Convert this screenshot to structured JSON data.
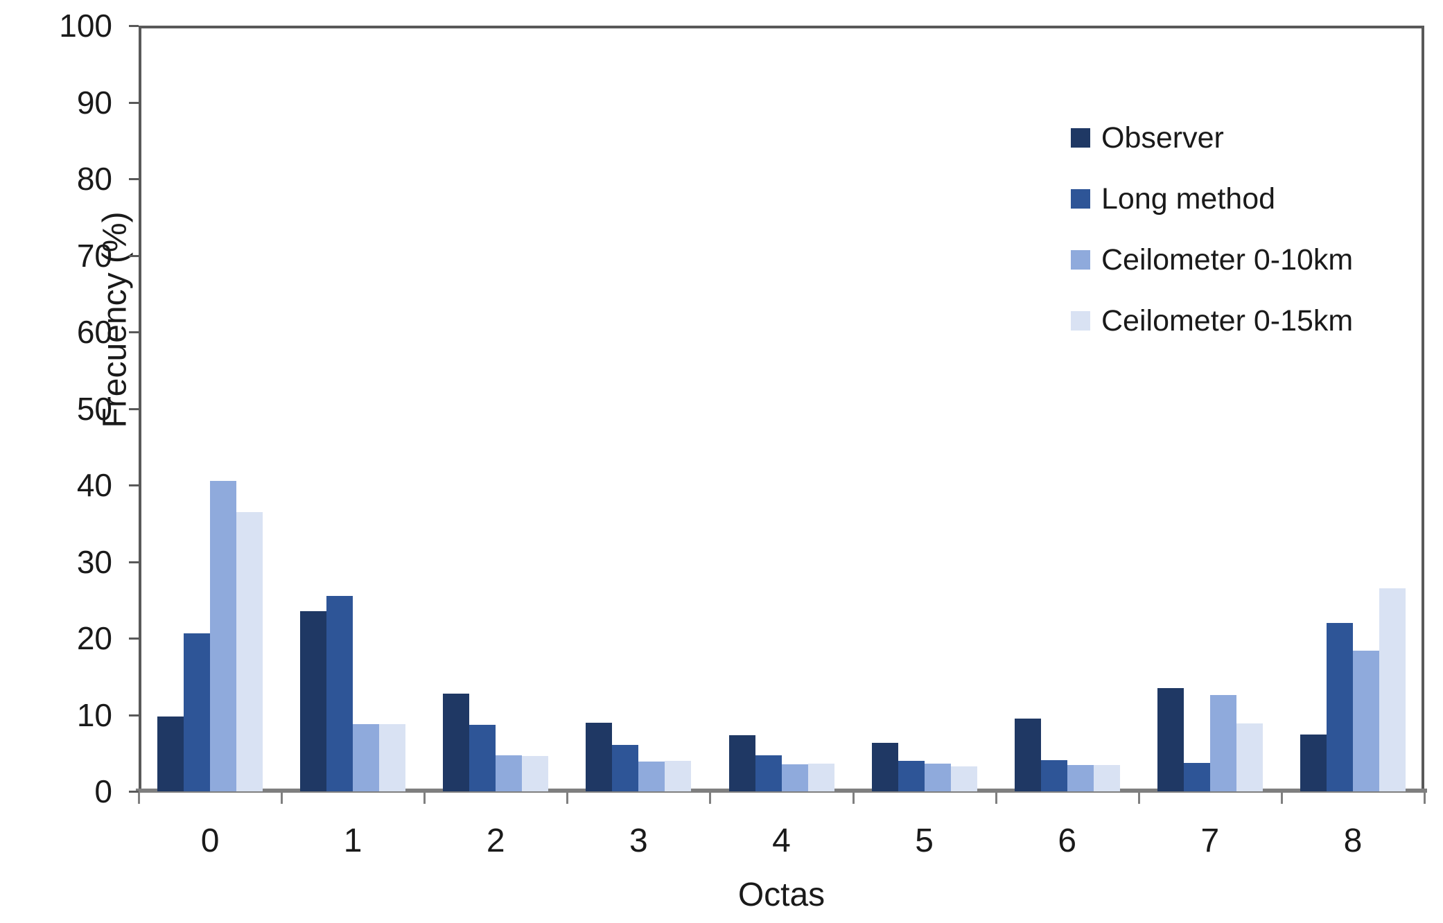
{
  "figure": {
    "background": "#ffffff",
    "text_color": "#1a1a1a",
    "plot_border_color": "#595959",
    "axis_line_color": "#7f7f7f"
  },
  "chart_data": {
    "type": "bar",
    "title": "",
    "xlabel": "Octas",
    "ylabel": "Frecuency (%)",
    "ylim": [
      0,
      100
    ],
    "yticks": [
      0,
      10,
      20,
      30,
      40,
      50,
      60,
      70,
      80,
      90,
      100
    ],
    "grid": false,
    "legend_position": "inside-top-right",
    "categories": [
      "0",
      "1",
      "2",
      "3",
      "4",
      "5",
      "6",
      "7",
      "8"
    ],
    "series": [
      {
        "name": "Observer",
        "color": "#1F3864",
        "values": [
          9.8,
          23.5,
          12.8,
          9.0,
          7.3,
          6.3,
          9.5,
          13.5,
          7.4
        ]
      },
      {
        "name": "Long method",
        "color": "#2E5597",
        "values": [
          20.6,
          25.5,
          8.7,
          6.1,
          4.7,
          4.0,
          4.1,
          3.7,
          22.0
        ]
      },
      {
        "name": "Ceilometer 0-10km",
        "color": "#8FAADC",
        "values": [
          40.5,
          8.8,
          4.7,
          3.9,
          3.5,
          3.6,
          3.4,
          12.6,
          18.4
        ]
      },
      {
        "name": "Ceilometer 0-15km",
        "color": "#D9E2F3",
        "values": [
          36.5,
          8.8,
          4.6,
          4.0,
          3.6,
          3.3,
          3.4,
          8.9,
          26.5
        ]
      }
    ]
  }
}
